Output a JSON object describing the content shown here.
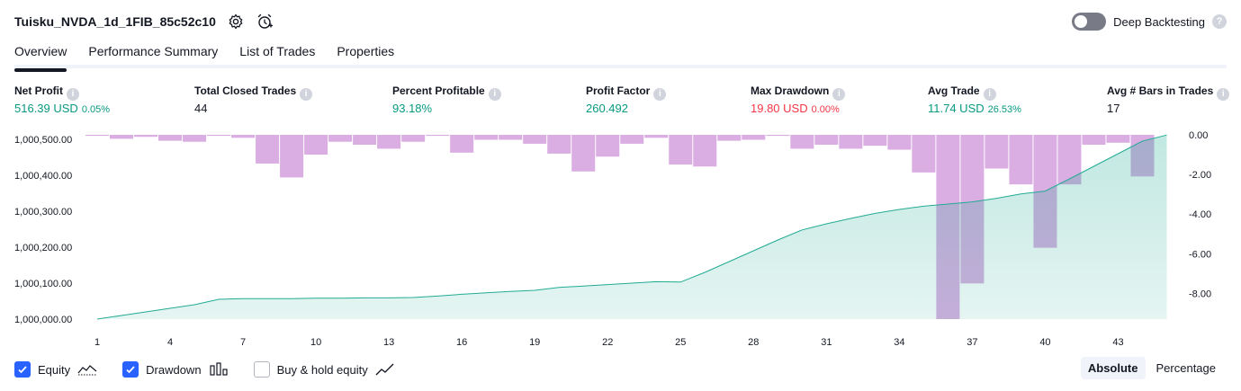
{
  "header": {
    "strategy_name": "Tuisku_NVDA_1d_1FIB_85c52c10",
    "settings_icon": "gear-icon",
    "alert_icon": "alarm-clock-plus-icon",
    "deep_backtesting_label": "Deep Backtesting",
    "deep_backtesting_enabled": false,
    "help_icon": "question-icon"
  },
  "tabs": [
    {
      "label": "Overview",
      "active": true
    },
    {
      "label": "Performance Summary",
      "active": false
    },
    {
      "label": "List of Trades",
      "active": false
    },
    {
      "label": "Properties",
      "active": false
    }
  ],
  "metrics": [
    {
      "label": "Net Profit",
      "value": "516.39 USD",
      "pct": "0.05%",
      "color": "green"
    },
    {
      "label": "Total Closed Trades",
      "value": "44",
      "pct": "",
      "color": "dark"
    },
    {
      "label": "Percent Profitable",
      "value": "93.18%",
      "pct": "",
      "color": "green"
    },
    {
      "label": "Profit Factor",
      "value": "260.492",
      "pct": "",
      "color": "green"
    },
    {
      "label": "Max Drawdown",
      "value": "19.80 USD",
      "pct": "0.00%",
      "color": "red"
    },
    {
      "label": "Avg Trade",
      "value": "11.74 USD",
      "pct": "26.53%",
      "color": "green"
    },
    {
      "label": "Avg # Bars in Trades",
      "value": "17",
      "pct": "",
      "color": "dark"
    }
  ],
  "chart_data": {
    "type": "area",
    "x_ticks": [
      "1",
      "4",
      "7",
      "10",
      "13",
      "16",
      "19",
      "22",
      "25",
      "28",
      "31",
      "34",
      "37",
      "40",
      "43"
    ],
    "y_left_ticks": [
      "1,000,500.00",
      "1,000,400.00",
      "1,000,300.00",
      "1,000,200.00",
      "1,000,100.00",
      "1,000,000.00"
    ],
    "y_left_range": [
      1000000,
      1000500
    ],
    "y_right_ticks": [
      "0.00",
      "-2.00",
      "-4.00",
      "-6.00",
      "-8.00"
    ],
    "y_right_range": [
      -9.3,
      0
    ],
    "series": [
      {
        "name": "Equity",
        "color": "#22ab94",
        "x": [
          1,
          2,
          3,
          4,
          5,
          6,
          7,
          8,
          9,
          10,
          11,
          12,
          13,
          14,
          15,
          16,
          17,
          18,
          19,
          20,
          21,
          22,
          23,
          24,
          25,
          26,
          27,
          28,
          29,
          30,
          31,
          32,
          33,
          34,
          35,
          36,
          37,
          38,
          39,
          40,
          41,
          42,
          43,
          44,
          45
        ],
        "values": [
          1000000,
          1000010,
          1000020,
          1000030,
          1000040,
          1000055,
          1000057,
          1000057,
          1000057,
          1000058,
          1000058,
          1000059,
          1000059,
          1000060,
          1000064,
          1000069,
          1000073,
          1000077,
          1000080,
          1000088,
          1000092,
          1000096,
          1000100,
          1000104,
          1000103,
          1000130,
          1000160,
          1000190,
          1000220,
          1000248,
          1000265,
          1000280,
          1000294,
          1000305,
          1000314,
          1000320,
          1000326,
          1000336,
          1000348,
          1000356,
          1000390,
          1000425,
          1000460,
          1000495,
          1000512
        ]
      },
      {
        "name": "Drawdown",
        "color": "#ce93d8",
        "x": [
          1,
          2,
          3,
          4,
          5,
          6,
          7,
          8,
          9,
          10,
          11,
          12,
          13,
          14,
          15,
          16,
          17,
          18,
          19,
          20,
          21,
          22,
          23,
          24,
          25,
          26,
          27,
          28,
          29,
          30,
          31,
          32,
          33,
          34,
          35,
          36,
          37,
          38,
          39,
          40,
          41,
          42,
          43,
          44
        ],
        "values": [
          -0.05,
          -0.2,
          -0.1,
          -0.3,
          -0.35,
          -0.05,
          -0.15,
          -1.45,
          -2.15,
          -1.0,
          -0.35,
          -0.5,
          -0.7,
          -0.35,
          -0.05,
          -0.9,
          -0.25,
          -0.25,
          -0.45,
          -0.95,
          -1.85,
          -1.1,
          -0.45,
          -0.15,
          -1.5,
          -1.6,
          -0.3,
          -0.25,
          -0.05,
          -0.7,
          -0.5,
          -0.7,
          -0.55,
          -0.75,
          -1.9,
          -9.3,
          -7.5,
          -1.7,
          -2.5,
          -5.7,
          -2.5,
          -0.5,
          -0.4,
          -2.1
        ]
      }
    ],
    "legend": [
      {
        "label": "Equity",
        "checked": true,
        "icon": "equity-line-icon"
      },
      {
        "label": "Drawdown",
        "checked": true,
        "icon": "drawdown-bars-icon"
      },
      {
        "label": "Buy & hold equity",
        "checked": false,
        "icon": "buy-hold-line-icon"
      }
    ],
    "grid": false
  },
  "scale_switch": {
    "options": [
      "Absolute",
      "Percentage"
    ],
    "selected": "Absolute"
  }
}
